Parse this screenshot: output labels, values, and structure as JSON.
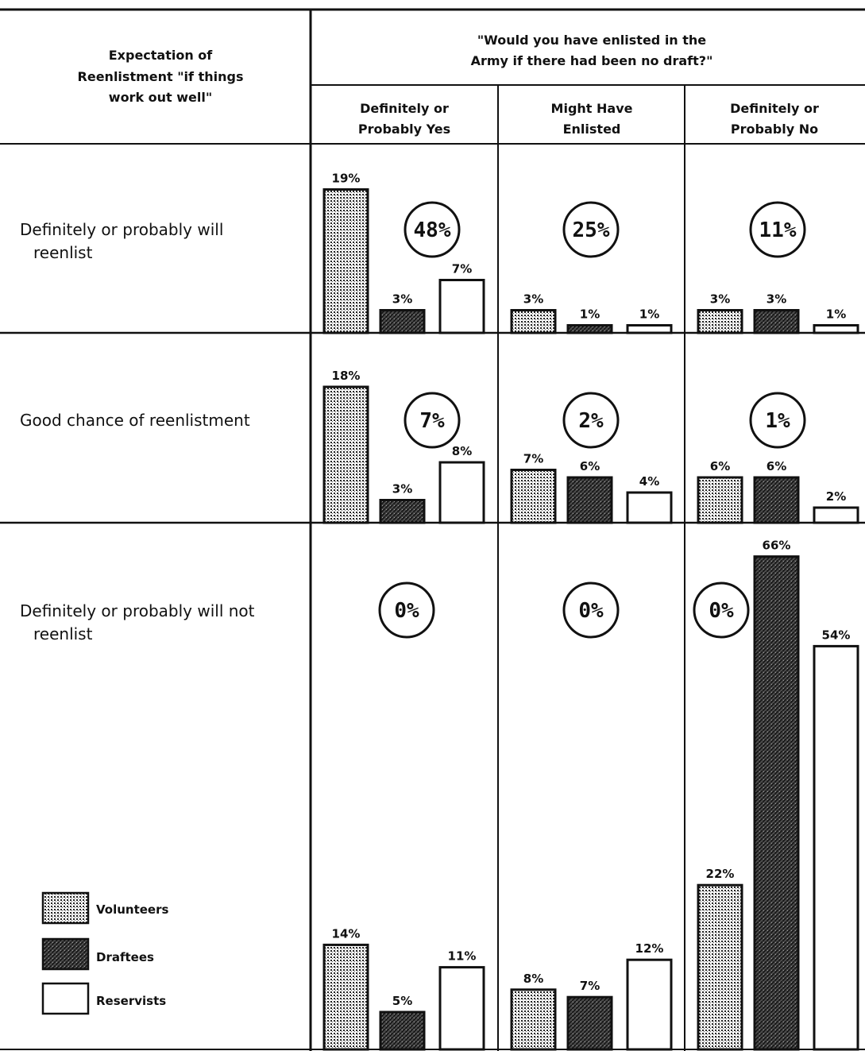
{
  "header": {
    "corner_line1": "Expectation of",
    "corner_line2": "Reenlistment \"if things",
    "corner_line3": "work out well\"",
    "question_line1": "\"Would you have enlisted in the",
    "question_line2": "Army if there had been no draft?\""
  },
  "legend": {
    "volunteers": "Volunteers",
    "draftees": "Draftees",
    "reservists": "Reservists"
  },
  "chart_data": {
    "type": "bar",
    "columns": [
      {
        "line1": "Definitely or",
        "line2": "Probably Yes"
      },
      {
        "line1": "Might Have",
        "line2": "Enlisted"
      },
      {
        "line1": "Definitely or",
        "line2": "Probably No"
      }
    ],
    "rows": [
      {
        "line1": "Definitely or probably will",
        "line2": "reenlist"
      },
      {
        "line1": "Good chance of reenlistment",
        "line2": ""
      },
      {
        "line1": "Definitely or probably will not",
        "line2": "reenlist"
      }
    ],
    "series_names": [
      "Volunteers",
      "Draftees",
      "Reservists"
    ],
    "values": [
      [
        [
          19,
          3,
          7
        ],
        [
          3,
          1,
          1
        ],
        [
          3,
          3,
          1
        ]
      ],
      [
        [
          18,
          3,
          8
        ],
        [
          7,
          6,
          4
        ],
        [
          6,
          6,
          2
        ]
      ],
      [
        [
          14,
          5,
          11
        ],
        [
          8,
          7,
          12
        ],
        [
          22,
          66,
          54
        ]
      ]
    ],
    "value_labels": [
      [
        [
          "19%",
          "3%",
          "7%"
        ],
        [
          "3%",
          "1%",
          "1%"
        ],
        [
          "3%",
          "3%",
          "1%"
        ]
      ],
      [
        [
          "18%",
          "3%",
          "8%"
        ],
        [
          "7%",
          "6%",
          "4%"
        ],
        [
          "6%",
          "6%",
          "2%"
        ]
      ],
      [
        [
          "14%",
          "5%",
          "11%"
        ],
        [
          "8%",
          "7%",
          "12%"
        ],
        [
          "22%",
          "66%",
          "54%"
        ]
      ]
    ],
    "circle_labels": [
      [
        "48%",
        "25%",
        "11%"
      ],
      [
        "7%",
        "2%",
        "1%"
      ],
      [
        "0%",
        "0%",
        "0%"
      ]
    ]
  }
}
